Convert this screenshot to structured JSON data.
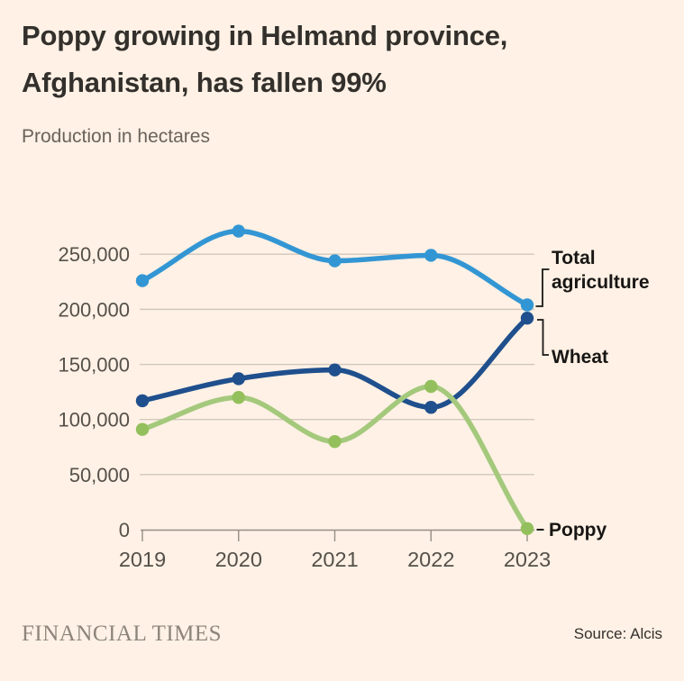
{
  "header": {
    "title": "Poppy growing in Helmand province, Afghanistan, has fallen 99%",
    "subtitle": "Production in hectares"
  },
  "chart_data": {
    "type": "line",
    "title": "Poppy growing in Helmand province, Afghanistan, has fallen 99%",
    "subtitle": "Production in hectares",
    "unit": "hectares",
    "x": [
      "2019",
      "2020",
      "2021",
      "2022",
      "2023"
    ],
    "series": [
      {
        "name": "Total agriculture",
        "color": "#3396d4",
        "dot_color": "#3396d4",
        "values": [
          226000,
          271000,
          244000,
          249000,
          204000
        ]
      },
      {
        "name": "Wheat",
        "color": "#1f4f8d",
        "dot_color": "#1f4f8d",
        "values": [
          117000,
          137000,
          145000,
          111000,
          192000
        ]
      },
      {
        "name": "Poppy",
        "color": "#a4c97c",
        "dot_color": "#93c05c",
        "values": [
          91000,
          120000,
          80000,
          130000,
          1000
        ]
      }
    ],
    "ylim": [
      0,
      275000
    ],
    "yticks": [
      0,
      50000,
      100000,
      150000,
      200000,
      250000
    ],
    "ytick_labels": [
      "0",
      "50,000",
      "100,000",
      "150,000",
      "200,000",
      "250,000"
    ],
    "grid": "horizontal",
    "legend_position": "right-annotations",
    "annotations": [
      {
        "series": "Total agriculture",
        "lines": [
          "Total",
          "agriculture"
        ]
      },
      {
        "series": "Wheat",
        "lines": [
          "Wheat"
        ]
      },
      {
        "series": "Poppy",
        "lines": [
          "Poppy"
        ]
      }
    ]
  },
  "footer": {
    "brand": "FINANCIAL TIMES",
    "source": "Source: Alcis"
  }
}
